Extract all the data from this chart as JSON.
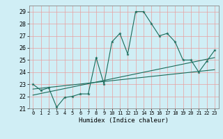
{
  "xlabel": "Humidex (Indice chaleur)",
  "bg_color": "#d0eef5",
  "line_color": "#1a6b5a",
  "grid_color": "#e8a0a0",
  "xlim": [
    -0.5,
    23.5
  ],
  "ylim": [
    21,
    29.5
  ],
  "yticks": [
    21,
    22,
    23,
    24,
    25,
    26,
    27,
    28,
    29
  ],
  "xticks": [
    0,
    1,
    2,
    3,
    4,
    5,
    6,
    7,
    8,
    9,
    10,
    11,
    12,
    13,
    14,
    15,
    16,
    17,
    18,
    19,
    20,
    21,
    22,
    23
  ],
  "line1_x": [
    0,
    1,
    2,
    3,
    4,
    5,
    6,
    7,
    8,
    9,
    10,
    11,
    12,
    13,
    14,
    15,
    16,
    17,
    18,
    19,
    20,
    21,
    22,
    23
  ],
  "line1_y": [
    23.0,
    22.5,
    22.7,
    21.1,
    21.9,
    22.0,
    22.2,
    22.2,
    25.2,
    23.0,
    26.5,
    27.2,
    25.5,
    29.0,
    29.0,
    28.0,
    27.0,
    27.2,
    26.5,
    25.0,
    25.0,
    24.0,
    24.9,
    25.8
  ],
  "line2_x": [
    0,
    23
  ],
  "line2_y": [
    22.1,
    25.2
  ],
  "line3_x": [
    0,
    23
  ],
  "line3_y": [
    22.6,
    24.2
  ]
}
